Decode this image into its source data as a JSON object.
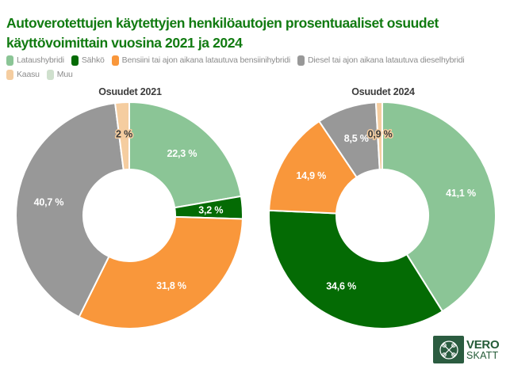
{
  "page": {
    "background": "#FFFFFF"
  },
  "title": {
    "text": "Autoverotettujen käytettyjen henkilöautojen prosentuaaliset osuudet käyttövoimittain vuosina 2021 ja 2024",
    "color": "#117B11"
  },
  "legend": {
    "items": [
      {
        "label": "Lataushybridi",
        "color": "#8BC596",
        "row": 1
      },
      {
        "label": "Sähkö",
        "color": "#046B04",
        "row": 1
      },
      {
        "label": "Bensiini tai ajon aikana latautuva bensiinihybridi",
        "color": "#F9973B",
        "row": 1
      },
      {
        "label": "Diesel tai ajon aikana latautuva dieselhybridi",
        "color": "#989898",
        "row": 1
      },
      {
        "label": "Kaasu",
        "color": "#F5CDA0",
        "row": 2
      },
      {
        "label": "Muu",
        "color": "#CFE0CD",
        "row": 2
      }
    ],
    "text_color": "#8C8C8C"
  },
  "chart_data": [
    {
      "type": "pie",
      "donut": true,
      "title": "Osuudet 2021",
      "categories": [
        "Lataushybridi",
        "Sähkö",
        "Bensiini tai ajon aikana latautuva bensiinihybridi",
        "Diesel tai ajon aikana latautuva dieselhybridi",
        "Kaasu"
      ],
      "values": [
        22.3,
        3.2,
        31.8,
        40.7,
        2
      ],
      "labels": [
        "22,3 %",
        "3,2 %",
        "31,8 %",
        "40,7 %",
        "2 %"
      ],
      "colors": [
        "#8BC596",
        "#046B04",
        "#F9973B",
        "#989898",
        "#F5CDA0"
      ],
      "start_angle_deg": 0,
      "direction": "clockwise",
      "slice_border_color": "#FFFFFF"
    },
    {
      "type": "pie",
      "donut": true,
      "title": "Osuudet 2024",
      "categories": [
        "Lataushybridi",
        "Sähkö",
        "Bensiini tai ajon aikana latautuva bensiinihybridi",
        "Diesel tai ajon aikana latautuva dieselhybridi",
        "Kaasu"
      ],
      "values": [
        41.1,
        34.6,
        14.9,
        8.5,
        0.9
      ],
      "labels": [
        "41,1 %",
        "34,6 %",
        "14,9 %",
        "8,5 %",
        "0,9 %"
      ],
      "colors": [
        "#8BC596",
        "#046B04",
        "#F9973B",
        "#989898",
        "#F5CDA0"
      ],
      "start_angle_deg": 0,
      "direction": "clockwise",
      "slice_border_color": "#FFFFFF"
    }
  ],
  "logo": {
    "name_fi": "VERO",
    "name_sv": "SKATT",
    "box_color": "#2B5C40",
    "text_color": "#245B37"
  }
}
